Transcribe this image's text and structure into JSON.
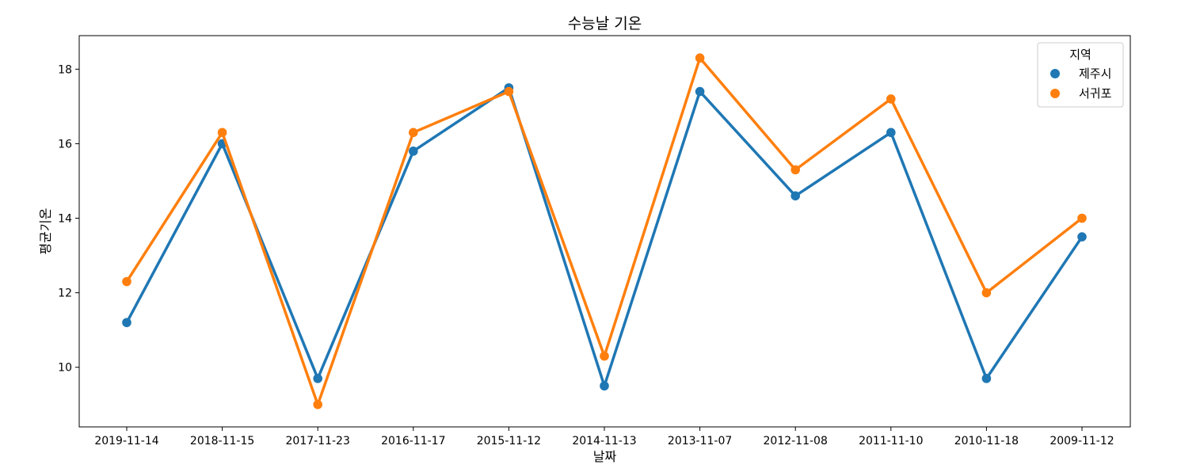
{
  "chart_data": {
    "type": "line",
    "title": "수능날 기온",
    "xlabel": "날짜",
    "ylabel": "평균기온",
    "categories": [
      "2019-11-14",
      "2018-11-15",
      "2017-11-23",
      "2016-11-17",
      "2015-11-12",
      "2014-11-13",
      "2013-11-07",
      "2012-11-08",
      "2011-11-10",
      "2010-11-18",
      "2009-11-12"
    ],
    "ylim": [
      8.4,
      18.9
    ],
    "yticks": [
      10,
      12,
      14,
      16,
      18
    ],
    "grid": false,
    "legend": {
      "title": "지역",
      "placement": "top-right"
    },
    "series": [
      {
        "name": "제주시",
        "color": "#1f77b4",
        "values": [
          11.2,
          16.0,
          9.7,
          15.8,
          17.5,
          9.5,
          17.4,
          14.6,
          16.3,
          9.7,
          13.5
        ]
      },
      {
        "name": "서귀포",
        "color": "#ff7f0e",
        "values": [
          12.3,
          16.3,
          9.0,
          16.3,
          17.4,
          10.3,
          18.3,
          15.3,
          17.2,
          12.0,
          14.0
        ]
      }
    ]
  }
}
